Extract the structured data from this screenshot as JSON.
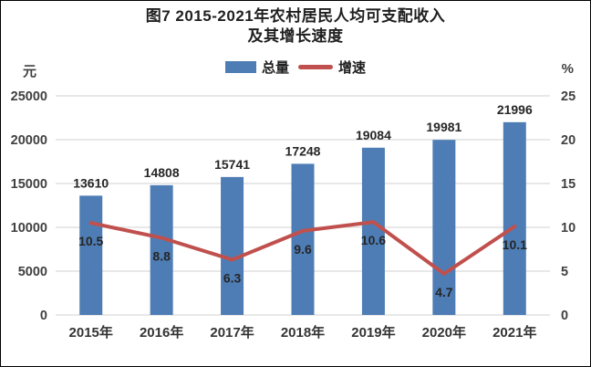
{
  "title": {
    "line1": "图7  2015-2021年农村居民人均可支配收入",
    "line2": "及其增长速度"
  },
  "legend": {
    "bars_label": "总量",
    "line_label": "增速"
  },
  "axes": {
    "left_unit": "元",
    "right_unit": "%"
  },
  "chart_data": {
    "type": "bar",
    "subtype": "bar-line-combo",
    "title": "图7 2015-2021年农村居民人均可支配收入及其增长速度",
    "categories": [
      "2015年",
      "2016年",
      "2017年",
      "2018年",
      "2019年",
      "2020年",
      "2021年"
    ],
    "series": [
      {
        "name": "总量",
        "type": "bar",
        "axis": "left",
        "unit": "元",
        "values": [
          13610,
          14808,
          15741,
          17248,
          19084,
          19981,
          21996
        ]
      },
      {
        "name": "增速",
        "type": "line",
        "axis": "right",
        "unit": "%",
        "values": [
          10.5,
          8.8,
          6.3,
          9.6,
          10.6,
          4.7,
          10.1
        ]
      }
    ],
    "left_axis": {
      "label": "元",
      "min": 0,
      "max": 25000,
      "ticks": [
        0,
        5000,
        10000,
        15000,
        20000,
        25000
      ]
    },
    "right_axis": {
      "label": "%",
      "min": 0,
      "max": 25,
      "ticks": [
        0,
        5,
        10,
        15,
        20,
        25
      ]
    },
    "grid": true,
    "legend_position": "top"
  },
  "colors": {
    "bar": "#4E7DB5",
    "line": "#C0504D",
    "grid": "#D9D9D9",
    "tick_text": "#404040",
    "data_label": "#262626",
    "x_label": "#333333",
    "background": "#FFFFFF",
    "border": "#000000"
  }
}
